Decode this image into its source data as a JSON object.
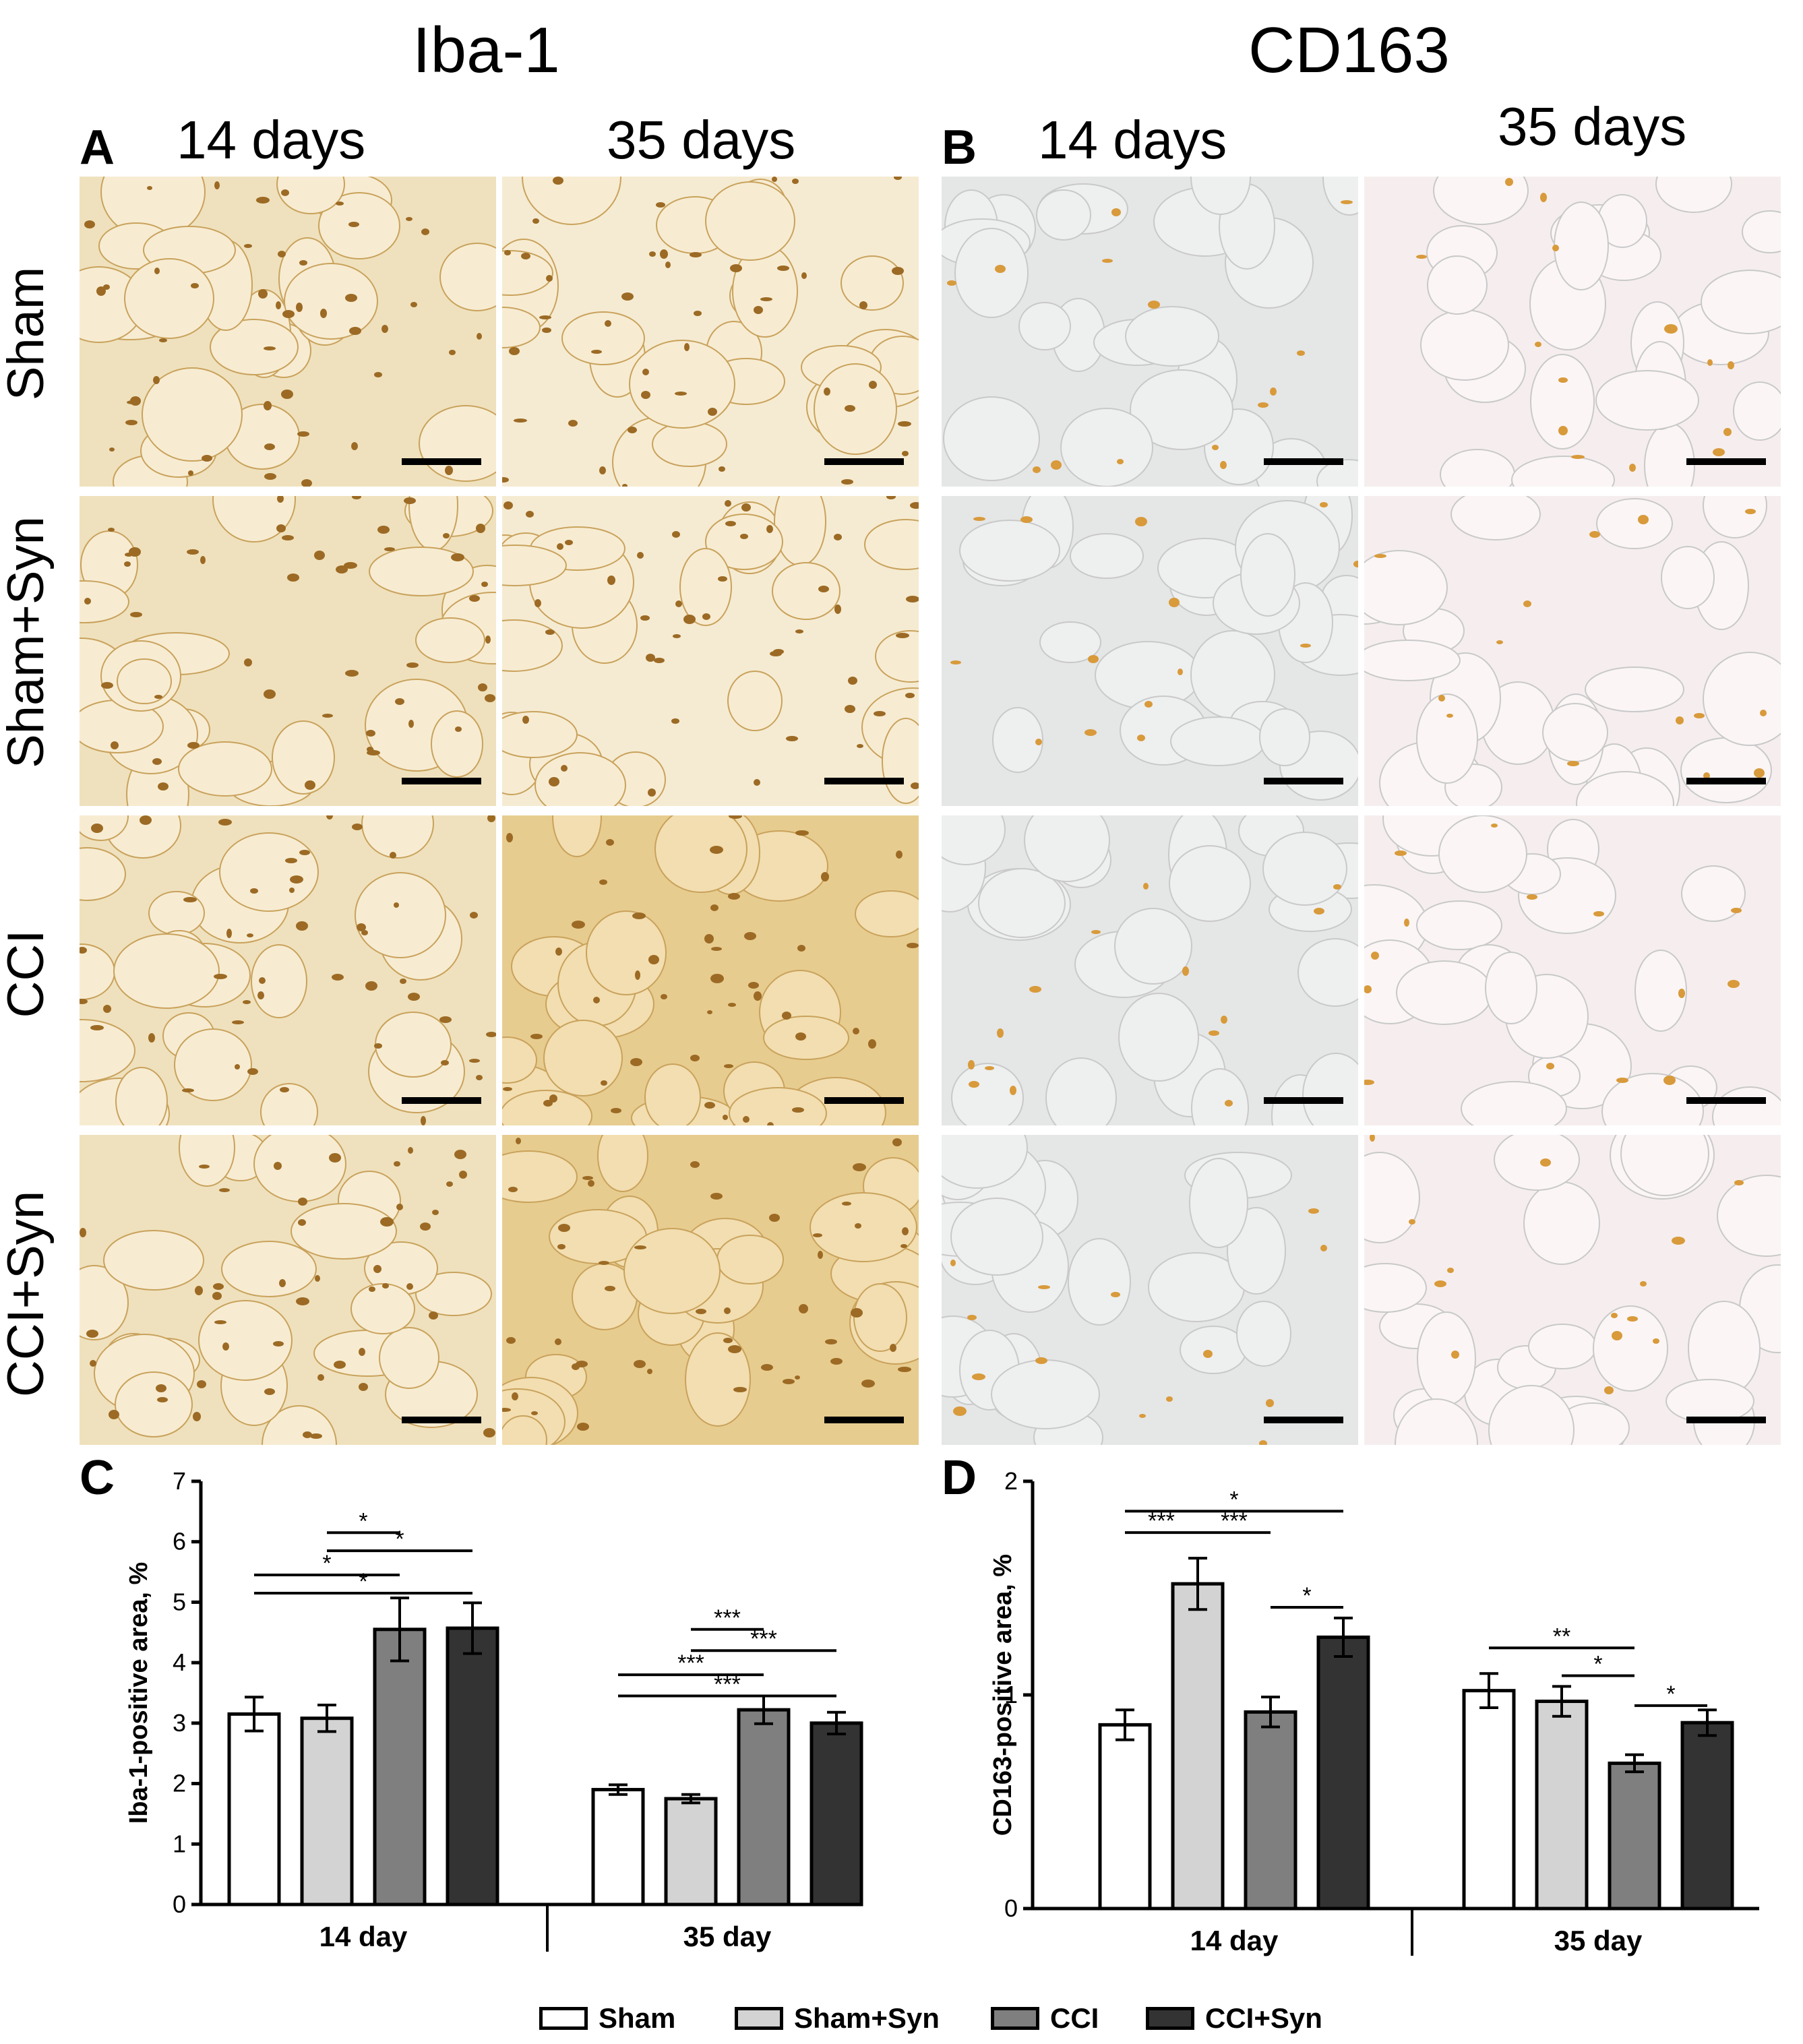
{
  "headers": {
    "iba1": "Iba-1",
    "cd163": "CD163"
  },
  "panel_letters": {
    "a": "A",
    "b": "B",
    "c": "C",
    "d": "D"
  },
  "day_labels": {
    "a_left": "14 days",
    "a_right": "35 days",
    "b_left": "14 days",
    "b_right": "35 days"
  },
  "row_labels": [
    "Sham",
    "Sham+Syn",
    "CCI",
    "CCI+Syn"
  ],
  "legend": [
    {
      "label": "Sham",
      "color": "#ffffff"
    },
    {
      "label": "Sham+Syn",
      "color": "#d3d3d3"
    },
    {
      "label": "CCI",
      "color": "#7f7f7f"
    },
    {
      "label": "CCI+Syn",
      "color": "#333333"
    }
  ],
  "chart_data": [
    {
      "type": "bar",
      "panel": "C",
      "ylabel": "Iba-1-positive area, %",
      "ylim": [
        0,
        7
      ],
      "yticks": [
        0,
        1,
        2,
        3,
        4,
        5,
        6,
        7
      ],
      "groups": [
        "14 day",
        "35 day"
      ],
      "series": [
        {
          "name": "Sham",
          "color": "#ffffff",
          "values": [
            3.15,
            1.9
          ],
          "errors": [
            0.28,
            0.08
          ]
        },
        {
          "name": "Sham+Syn",
          "color": "#d3d3d3",
          "values": [
            3.08,
            1.75
          ],
          "errors": [
            0.22,
            0.07
          ]
        },
        {
          "name": "CCI",
          "color": "#7f7f7f",
          "values": [
            4.55,
            3.22
          ],
          "errors": [
            0.52,
            0.23
          ]
        },
        {
          "name": "CCI+Syn",
          "color": "#333333",
          "values": [
            4.57,
            3.0
          ],
          "errors": [
            0.42,
            0.18
          ]
        }
      ],
      "significance": [
        {
          "group": 0,
          "from": 1,
          "to": 2,
          "label": "*",
          "level": 6.15
        },
        {
          "group": 0,
          "from": 1,
          "to": 3,
          "label": "*",
          "level": 5.85
        },
        {
          "group": 0,
          "from": 0,
          "to": 2,
          "label": "*",
          "level": 5.45
        },
        {
          "group": 0,
          "from": 0,
          "to": 3,
          "label": "*",
          "level": 5.15
        },
        {
          "group": 1,
          "from": 1,
          "to": 2,
          "label": "***",
          "level": 4.55
        },
        {
          "group": 1,
          "from": 1,
          "to": 3,
          "label": "***",
          "level": 4.2
        },
        {
          "group": 1,
          "from": 0,
          "to": 2,
          "label": "***",
          "level": 3.8
        },
        {
          "group": 1,
          "from": 0,
          "to": 3,
          "label": "***",
          "level": 3.45
        }
      ]
    },
    {
      "type": "bar",
      "panel": "D",
      "ylabel": "CD163-positive area, %",
      "ylim": [
        0,
        2
      ],
      "yticks": [
        0,
        1,
        2
      ],
      "groups": [
        "14 day",
        "35 day"
      ],
      "series": [
        {
          "name": "Sham",
          "color": "#ffffff",
          "values": [
            0.86,
            1.02
          ],
          "errors": [
            0.07,
            0.08
          ]
        },
        {
          "name": "Sham+Syn",
          "color": "#d3d3d3",
          "values": [
            1.52,
            0.97
          ],
          "errors": [
            0.12,
            0.07
          ]
        },
        {
          "name": "CCI",
          "color": "#7f7f7f",
          "values": [
            0.92,
            0.68
          ],
          "errors": [
            0.07,
            0.04
          ]
        },
        {
          "name": "CCI+Syn",
          "color": "#333333",
          "values": [
            1.27,
            0.87
          ],
          "errors": [
            0.09,
            0.06
          ]
        }
      ],
      "significance": [
        {
          "group": 0,
          "from": 0,
          "to": 3,
          "label": "*",
          "level": 1.86
        },
        {
          "group": 0,
          "from": 0,
          "to": 1,
          "label": "***",
          "level": 1.76
        },
        {
          "group": 0,
          "from": 1,
          "to": 2,
          "label": "***",
          "level": 1.76
        },
        {
          "group": 0,
          "from": 2,
          "to": 3,
          "label": "*",
          "level": 1.41
        },
        {
          "group": 1,
          "from": 0,
          "to": 2,
          "label": "**",
          "level": 1.22
        },
        {
          "group": 1,
          "from": 1,
          "to": 2,
          "label": "*",
          "level": 1.09
        },
        {
          "group": 1,
          "from": 2,
          "to": 3,
          "label": "*",
          "level": 0.95
        }
      ]
    }
  ]
}
